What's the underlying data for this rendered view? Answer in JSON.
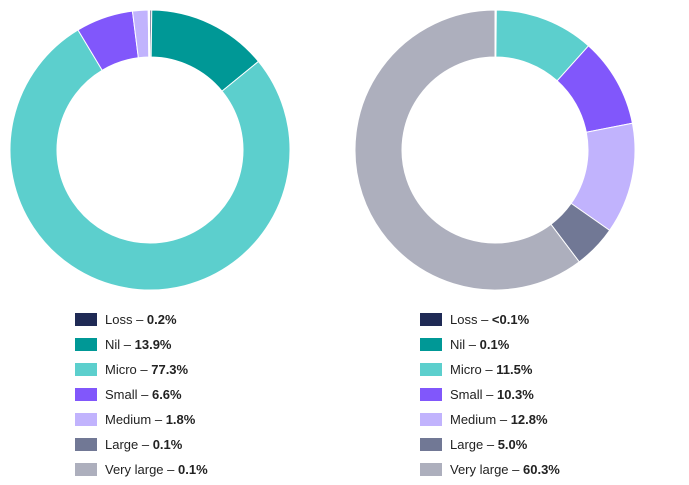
{
  "chart_data": [
    {
      "type": "pie",
      "categories": [
        "Loss",
        "Nil",
        "Micro",
        "Small",
        "Medium",
        "Large",
        "Very large"
      ],
      "values": [
        0.2,
        13.9,
        77.3,
        6.6,
        1.8,
        0.1,
        0.1
      ],
      "value_labels": [
        "0.2%",
        "13.9%",
        "77.3%",
        "6.6%",
        "1.8%",
        "0.1%",
        "0.1%"
      ],
      "donut": true,
      "legend_position": "bottom"
    },
    {
      "type": "pie",
      "categories": [
        "Loss",
        "Nil",
        "Micro",
        "Small",
        "Medium",
        "Large",
        "Very large"
      ],
      "values": [
        0.05,
        0.1,
        11.5,
        10.3,
        12.8,
        5.0,
        60.3
      ],
      "value_labels": [
        "<0.1%",
        "0.1%",
        "11.5%",
        "10.3%",
        "12.8%",
        "5.0%",
        "60.3%"
      ],
      "donut": true,
      "legend_position": "bottom"
    }
  ],
  "colors": [
    "#1f2a55",
    "#009896",
    "#5ccfcd",
    "#8157fb",
    "#c1b3fd",
    "#717895",
    "#adafbd"
  ],
  "separator": " – "
}
